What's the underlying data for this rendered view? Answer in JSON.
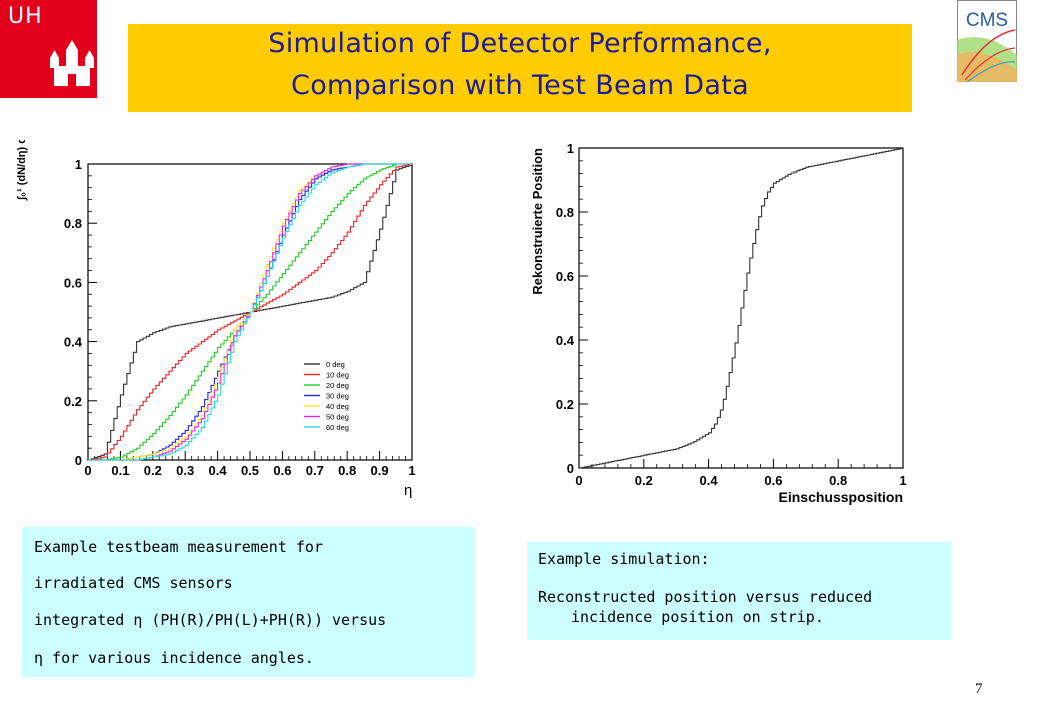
{
  "header": {
    "logo_left": "UH",
    "title_line1": "Simulation of Detector Performance,",
    "title_line2": "Comparison with Test Beam Data",
    "logo_right": "CMS"
  },
  "chart_data": [
    {
      "type": "line",
      "title": "",
      "xlabel": "η",
      "ylabel": "∫₀¹ (dN/dη) dη'",
      "xlim": [
        0,
        1
      ],
      "ylim": [
        0,
        1
      ],
      "x_ticks": [
        "0",
        "0.1",
        "0.2",
        "0.3",
        "0.4",
        "0.5",
        "0.6",
        "0.7",
        "0.8",
        "0.9",
        "1"
      ],
      "y_ticks": [
        "0",
        "0.2",
        "0.4",
        "0.6",
        "0.8",
        "1"
      ],
      "legend_position": "bottom-right",
      "x": [
        0,
        0.05,
        0.1,
        0.15,
        0.2,
        0.25,
        0.3,
        0.35,
        0.4,
        0.45,
        0.5,
        0.55,
        0.6,
        0.65,
        0.7,
        0.75,
        0.8,
        0.85,
        0.9,
        0.95,
        1
      ],
      "series": [
        {
          "name": "0 deg",
          "color": "#333333",
          "values": [
            0,
            0.02,
            0.22,
            0.4,
            0.43,
            0.45,
            0.46,
            0.47,
            0.48,
            0.49,
            0.5,
            0.51,
            0.52,
            0.53,
            0.54,
            0.55,
            0.57,
            0.6,
            0.78,
            0.98,
            1
          ]
        },
        {
          "name": "10 deg",
          "color": "#ee2222",
          "values": [
            0,
            0.01,
            0.08,
            0.17,
            0.24,
            0.3,
            0.36,
            0.4,
            0.44,
            0.47,
            0.5,
            0.53,
            0.56,
            0.6,
            0.64,
            0.7,
            0.77,
            0.86,
            0.93,
            0.99,
            1
          ]
        },
        {
          "name": "20 deg",
          "color": "#22cc22",
          "values": [
            0,
            0,
            0.01,
            0.04,
            0.09,
            0.15,
            0.22,
            0.3,
            0.38,
            0.44,
            0.5,
            0.56,
            0.63,
            0.7,
            0.77,
            0.84,
            0.9,
            0.95,
            0.98,
            1.0,
            1
          ]
        },
        {
          "name": "30 deg",
          "color": "#2222ee",
          "values": [
            0,
            0,
            0,
            0.01,
            0.02,
            0.05,
            0.1,
            0.18,
            0.3,
            0.42,
            0.5,
            0.62,
            0.76,
            0.88,
            0.95,
            0.98,
            0.99,
            1.0,
            1.0,
            1.0,
            1
          ]
        },
        {
          "name": "40 deg",
          "color": "#eeee22",
          "values": [
            0,
            0,
            0,
            0.01,
            0.02,
            0.04,
            0.08,
            0.15,
            0.28,
            0.44,
            0.5,
            0.66,
            0.8,
            0.91,
            0.96,
            0.99,
            1.0,
            1.0,
            1.0,
            1.0,
            1
          ]
        },
        {
          "name": "50 deg",
          "color": "#ee22ee",
          "values": [
            0,
            0,
            0,
            0,
            0.01,
            0.03,
            0.07,
            0.14,
            0.26,
            0.42,
            0.5,
            0.64,
            0.79,
            0.9,
            0.96,
            0.99,
            1.0,
            1.0,
            1.0,
            1.0,
            1
          ]
        },
        {
          "name": "60 deg",
          "color": "#22dddd",
          "values": [
            0,
            0,
            0,
            0,
            0.01,
            0.02,
            0.05,
            0.11,
            0.22,
            0.4,
            0.5,
            0.62,
            0.75,
            0.86,
            0.93,
            0.97,
            0.99,
            1.0,
            1.0,
            1.0,
            1
          ]
        }
      ]
    },
    {
      "type": "line",
      "title": "",
      "xlabel": "Einschussposition",
      "ylabel": "Rekonstruierte Position",
      "xlim": [
        0,
        1
      ],
      "ylim": [
        0,
        1
      ],
      "x_ticks": [
        "0",
        "0.2",
        "0.4",
        "0.6",
        "0.8",
        "1"
      ],
      "y_ticks": [
        "0",
        "0.2",
        "0.4",
        "0.6",
        "0.8",
        "1"
      ],
      "x": [
        0,
        0.05,
        0.1,
        0.15,
        0.2,
        0.25,
        0.3,
        0.35,
        0.4,
        0.42,
        0.44,
        0.46,
        0.48,
        0.5,
        0.52,
        0.54,
        0.56,
        0.58,
        0.6,
        0.65,
        0.7,
        0.75,
        0.8,
        0.85,
        0.9,
        0.95,
        1
      ],
      "series": [
        {
          "color": "#333333",
          "values": [
            0,
            0.01,
            0.02,
            0.03,
            0.04,
            0.05,
            0.06,
            0.08,
            0.11,
            0.14,
            0.19,
            0.28,
            0.38,
            0.5,
            0.62,
            0.72,
            0.81,
            0.86,
            0.89,
            0.92,
            0.94,
            0.95,
            0.96,
            0.97,
            0.98,
            0.99,
            1.0
          ]
        }
      ]
    }
  ],
  "captions": {
    "left": [
      "Example testbeam measurement for",
      "irradiated  CMS sensors",
      "integrated η (PH(R)/PH(L)+PH(R)) versus",
      "η for various incidence angles."
    ],
    "right": [
      "Example simulation:",
      "Reconstructed position versus reduced",
      "incidence position on strip."
    ]
  },
  "page_number": "7"
}
